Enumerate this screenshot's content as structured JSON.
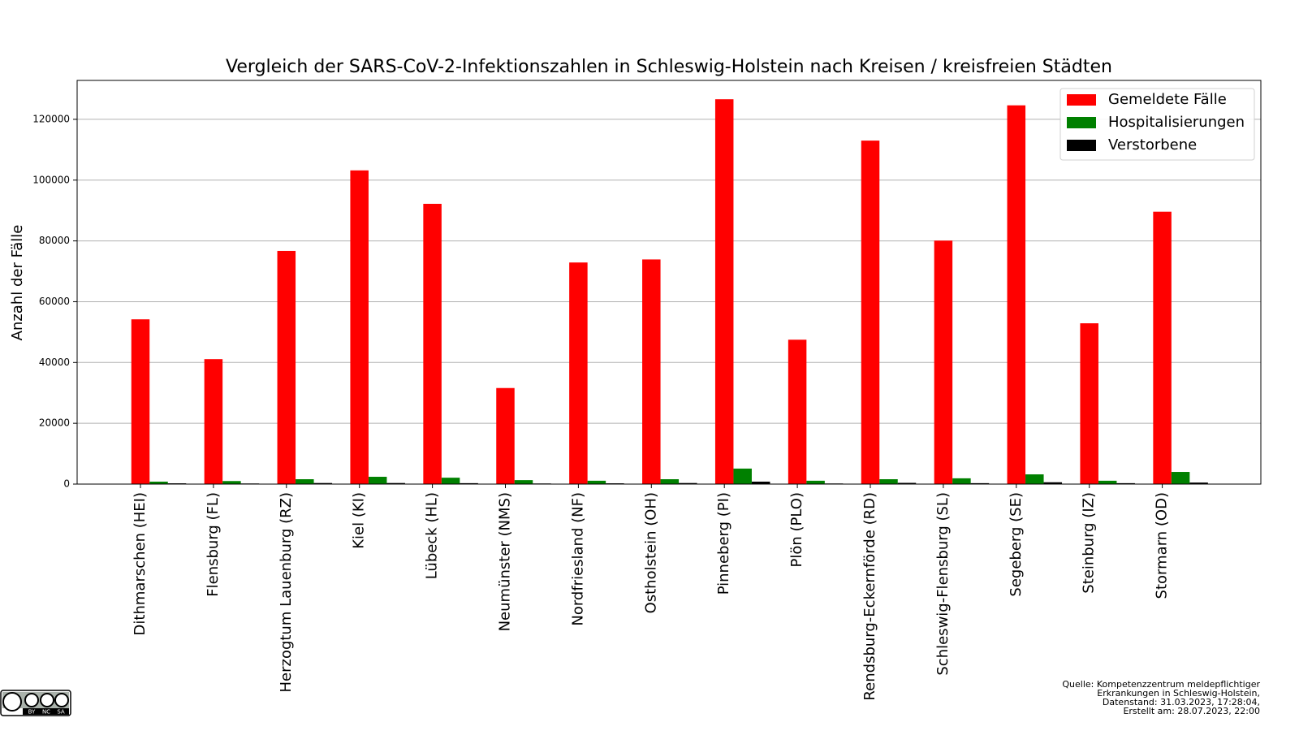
{
  "chart_data": {
    "type": "bar",
    "title": "Vergleich der SARS-CoV-2-Infektionszahlen in Schleswig-Holstein nach Kreisen / kreisfreien Städten",
    "y_label": "Anzahl der Fälle",
    "categories": [
      "Dithmarschen (HEI)",
      "Flensburg (FL)",
      "Herzogtum Lauenburg (RZ)",
      "Kiel (KI)",
      "Lübeck (HL)",
      "Neumünster (NMS)",
      "Nordfriesland (NF)",
      "Ostholstein (OH)",
      "Pinneberg (PI)",
      "Plön (PLO)",
      "Rendsburg-Eckernförde (RD)",
      "Schleswig-Flensburg (SL)",
      "Segeberg (SE)",
      "Steinburg (IZ)",
      "Stormarn (OD)"
    ],
    "series": [
      {
        "name": "Gemeldete Fälle",
        "color": "#ff0000",
        "values": [
          54200,
          41100,
          76700,
          103200,
          92200,
          31600,
          72900,
          73900,
          126600,
          47500,
          113000,
          80100,
          124600,
          52900,
          89600
        ]
      },
      {
        "name": "Hospitalisierungen",
        "color": "#008000",
        "values": [
          800,
          1000,
          1600,
          2400,
          2100,
          1300,
          1100,
          1600,
          5100,
          1100,
          1600,
          1900,
          3200,
          1100,
          4000
        ]
      },
      {
        "name": "Verstorbene",
        "color": "#000000",
        "values": [
          250,
          200,
          350,
          350,
          300,
          200,
          250,
          350,
          800,
          200,
          400,
          300,
          600,
          300,
          500
        ]
      }
    ],
    "ylim": [
      0,
      132800
    ],
    "yticks": [
      0,
      20000,
      40000,
      60000,
      80000,
      100000,
      120000
    ],
    "grid": true,
    "legend": "upper right",
    "source": [
      "Quelle: Kompetenzzentrum meldepflichtiger",
      "Erkrankungen in Schleswig-Holstein,",
      "Datenstand: 31.03.2023, 17:28:04,",
      "Erstellt am: 28.07.2023, 22:00"
    ],
    "license": [
      "BY",
      "NC",
      "SA"
    ]
  }
}
